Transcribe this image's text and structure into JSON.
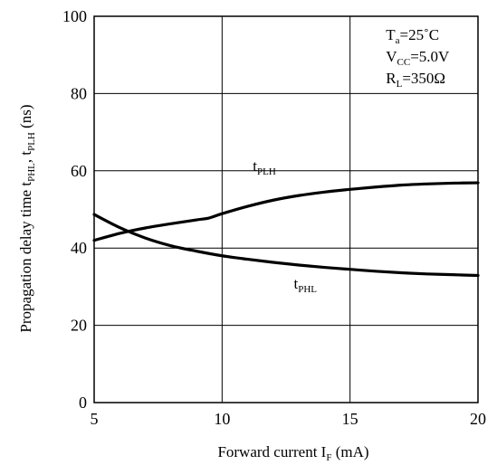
{
  "chart_data": {
    "type": "line",
    "xlabel": {
      "main": "Forward current  I",
      "sub": "F",
      "unit": " (mA)"
    },
    "ylabel": {
      "main": "Propagation delay time t",
      "sub1": "PHL",
      "mid": ", t",
      "sub2": "PLH",
      "unit": " (ns)"
    },
    "xlim": [
      5,
      20
    ],
    "ylim": [
      0,
      100
    ],
    "xticks": [
      5,
      10,
      15,
      20
    ],
    "yticks": [
      0,
      20,
      40,
      60,
      80,
      100
    ],
    "grid": true,
    "annotations": [
      {
        "main": "T",
        "sub": "a",
        "rest": "=25˚C"
      },
      {
        "main": "V",
        "sub": "CC",
        "rest": "=5.0V"
      },
      {
        "main": "R",
        "sub": "L",
        "rest": "=350Ω"
      }
    ],
    "series": [
      {
        "name": "tPLH",
        "label_main": "t",
        "label_sub": "PLH",
        "x": [
          5,
          6,
          7,
          8,
          9,
          9.5,
          10,
          11,
          12,
          13,
          14,
          15,
          16,
          17,
          18,
          19,
          20
        ],
        "y": [
          42,
          43.8,
          45.2,
          46.3,
          47.3,
          47.8,
          48.9,
          50.8,
          52.4,
          53.6,
          54.5,
          55.2,
          55.8,
          56.3,
          56.6,
          56.8,
          56.9
        ]
      },
      {
        "name": "tPHL",
        "label_main": "t",
        "label_sub": "PHL",
        "x": [
          5,
          6,
          7,
          8,
          9,
          10,
          11,
          12,
          13,
          14,
          15,
          16,
          17,
          18,
          19,
          20
        ],
        "y": [
          48.7,
          45.3,
          42.6,
          40.6,
          39.2,
          38.0,
          37.1,
          36.3,
          35.6,
          35.0,
          34.5,
          34.0,
          33.6,
          33.3,
          33.1,
          32.9
        ]
      }
    ]
  }
}
